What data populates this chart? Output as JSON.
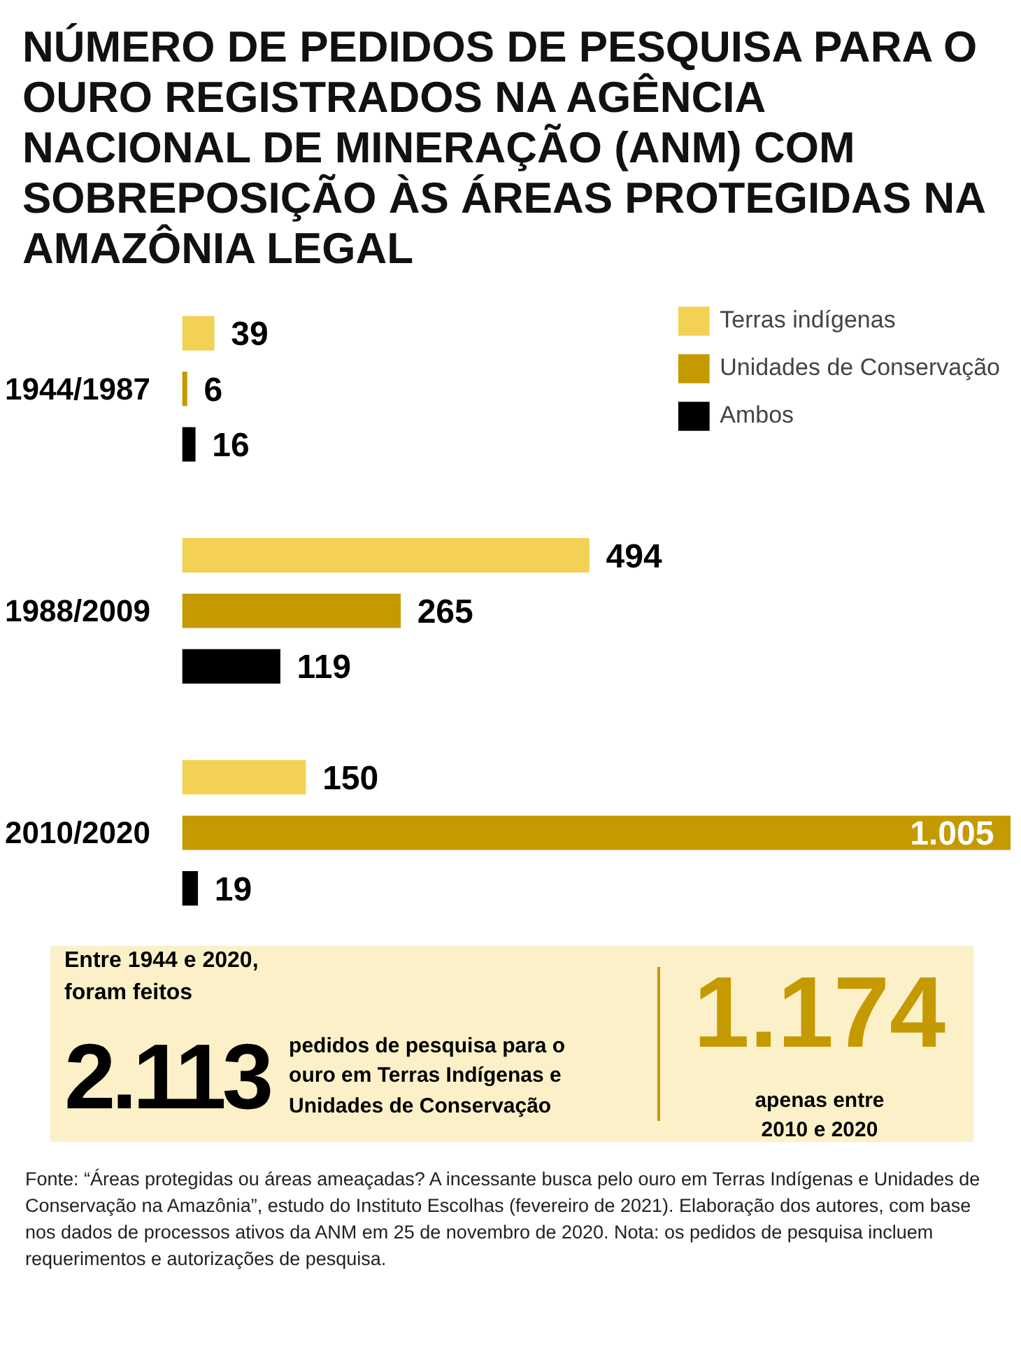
{
  "chart_data": {
    "type": "bar",
    "orientation": "horizontal",
    "title": "NÚMERO DE PEDIDOS DE PESQUISA PARA O OURO REGISTRADOS NA AGÊNCIA NACIONAL DE MINERAÇÃO (ANM) COM SOBREPOSIÇÃO ÀS ÁREAS PROTEGIDAS NA AMAZÔNIA LEGAL",
    "categories": [
      "1944/1987",
      "1988/2009",
      "2010/2020"
    ],
    "series": [
      {
        "name": "Terras indígenas",
        "color": "#f2d155",
        "values": [
          39,
          494,
          150
        ],
        "value_labels": [
          "39",
          "494",
          "150"
        ]
      },
      {
        "name": "Unidades de Conservação",
        "color": "#c49a00",
        "values": [
          6,
          265,
          1005
        ],
        "value_labels": [
          "6",
          "265",
          "1.005"
        ]
      },
      {
        "name": "Ambos",
        "color": "#000000",
        "values": [
          16,
          119,
          19
        ],
        "value_labels": [
          "16",
          "119",
          "19"
        ]
      }
    ],
    "legend": "top right",
    "grid": false,
    "annotations": [
      "Entre 1944 e 2020, foram feitos",
      "2.113",
      "pedidos de pesquisa para o ouro em Terras Indígenas e Unidades de Conservação",
      "1.174",
      "apenas entre 2010 e 2020",
      "Fonte: “Áreas protegidas ou áreas ameaçadas? A incessante busca pelo ouro em Terras Indígenas e Unidades de Conservação na Amazônia”, estudo do Instituto Escolhas (fevereiro de 2021). Elaboração dos autores, com base nos dados de processos ativos da ANM em 25 de novembro de 2020. Nota: os pedidos de pesquisa incluem requerimentos e autorizações de pesquisa."
    ]
  }
}
